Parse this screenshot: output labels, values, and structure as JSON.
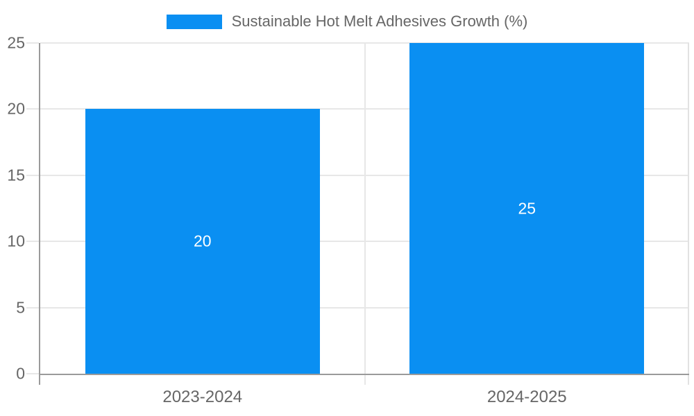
{
  "chart_data": {
    "type": "bar",
    "title": "",
    "legend_label": "Sustainable Hot Melt Adhesives Growth (%)",
    "legend_position": "top",
    "categories": [
      "2023-2024",
      "2024-2025"
    ],
    "values": [
      20,
      25
    ],
    "data_labels": [
      "20",
      "25"
    ],
    "xlabel": "",
    "ylabel": "",
    "ylim": [
      0,
      25
    ],
    "yticks": [
      0,
      5,
      10,
      15,
      20,
      25
    ],
    "grid": true,
    "colors": {
      "bar": "#0a8ff2",
      "data_label_text": "#ffffff",
      "tick_text": "#666666",
      "legend_text": "#666666",
      "axis_line": "#9a9a9a",
      "grid_line": "#e7e7e7",
      "plot_border": "#e2e2e2",
      "background": "#ffffff"
    }
  }
}
